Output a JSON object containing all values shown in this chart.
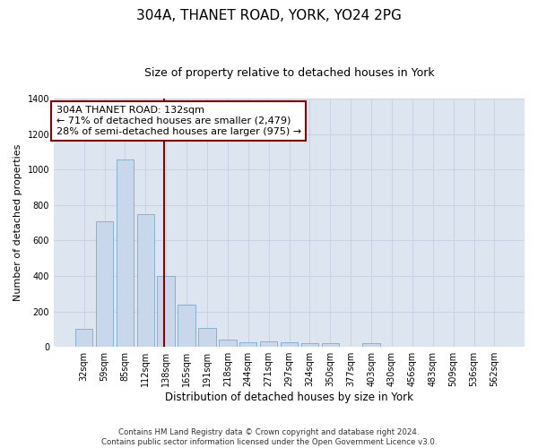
{
  "title": "304A, THANET ROAD, YORK, YO24 2PG",
  "subtitle": "Size of property relative to detached houses in York",
  "xlabel": "Distribution of detached houses by size in York",
  "ylabel": "Number of detached properties",
  "footnote": "Contains HM Land Registry data © Crown copyright and database right 2024.\nContains public sector information licensed under the Open Government Licence v3.0.",
  "bar_labels": [
    "32sqm",
    "59sqm",
    "85sqm",
    "112sqm",
    "138sqm",
    "165sqm",
    "191sqm",
    "218sqm",
    "244sqm",
    "271sqm",
    "297sqm",
    "324sqm",
    "350sqm",
    "377sqm",
    "403sqm",
    "430sqm",
    "456sqm",
    "483sqm",
    "509sqm",
    "536sqm",
    "562sqm"
  ],
  "bar_values": [
    100,
    710,
    1055,
    750,
    400,
    240,
    105,
    40,
    25,
    30,
    25,
    20,
    20,
    0,
    20,
    0,
    0,
    0,
    0,
    0,
    0
  ],
  "bar_color": "#c8d8ea",
  "bar_edge_color": "#7aaac8",
  "vline_color": "#8b0000",
  "vline_index": 4.42,
  "annotation_text": "304A THANET ROAD: 132sqm\n← 71% of detached houses are smaller (2,479)\n28% of semi-detached houses are larger (975) →",
  "annotation_box_edgecolor": "#8b0000",
  "ylim": [
    0,
    1400
  ],
  "yticks": [
    0,
    200,
    400,
    600,
    800,
    1000,
    1200,
    1400
  ],
  "grid_color": "#c8d4e4",
  "bg_color": "#dde6f0",
  "title_fontsize": 11,
  "subtitle_fontsize": 9,
  "annotation_fontsize": 8,
  "tick_fontsize": 7,
  "xlabel_fontsize": 8.5,
  "ylabel_fontsize": 8
}
